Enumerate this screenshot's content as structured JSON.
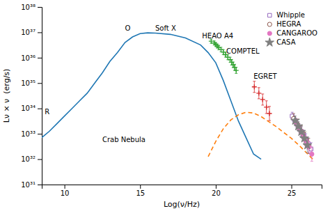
{
  "chart_data": {
    "type": "line",
    "xlabel": "Log(ν/Hz)",
    "ylabel": "Lν × ν  (erg/s)",
    "xlim": [
      8.5,
      27
    ],
    "ylim": [
      31,
      38
    ],
    "xticks": [
      10,
      15,
      20,
      25
    ],
    "yticks": [
      {
        "value": 31,
        "label": "10³¹"
      },
      {
        "value": 32,
        "label": "10³²"
      },
      {
        "value": 33,
        "label": "10³³"
      },
      {
        "value": 34,
        "label": "10³⁴"
      },
      {
        "value": 35,
        "label": "10³⁵"
      },
      {
        "value": 36,
        "label": "10³⁶"
      },
      {
        "value": 37,
        "label": "10³⁷"
      },
      {
        "value": 38,
        "label": "10³⁸"
      }
    ],
    "legend": "upper right",
    "series": [
      {
        "type": "line",
        "line_style": "solid",
        "x": [
          8.5,
          9.0,
          9.5,
          10.0,
          10.5,
          11.0,
          11.5,
          12.0,
          12.5,
          13.0,
          13.5,
          14.0,
          14.5,
          15.0,
          15.5,
          16.0,
          17.0,
          18.0,
          19.0,
          19.5,
          20.0,
          20.5,
          21.0,
          21.5,
          22.0,
          22.5,
          23.0
        ],
        "values": [
          32.85,
          33.1,
          33.4,
          33.7,
          34.0,
          34.3,
          34.6,
          35.0,
          35.4,
          35.85,
          36.2,
          36.6,
          36.82,
          36.95,
          36.98,
          36.97,
          36.92,
          36.78,
          36.5,
          36.2,
          35.8,
          35.1,
          34.3,
          33.5,
          32.85,
          32.2,
          32.0
        ]
      },
      {
        "type": "line",
        "line_style": "dashed",
        "x": [
          19.5,
          20.0,
          20.5,
          21.0,
          21.5,
          22.0,
          22.5,
          23.0,
          23.5,
          24.0,
          24.5,
          25.0,
          25.5,
          26.0,
          26.5
        ],
        "values": [
          32.1,
          32.7,
          33.2,
          33.55,
          33.75,
          33.85,
          33.82,
          33.68,
          33.48,
          33.28,
          33.05,
          32.82,
          32.55,
          32.25,
          31.95
        ]
      },
      {
        "type": "scatter",
        "marker": "plus",
        "x": [
          19.7,
          19.9,
          20.0,
          20.1,
          20.2,
          20.35,
          20.5,
          20.65,
          20.8,
          20.95,
          21.05,
          21.15,
          21.25,
          21.35
        ],
        "values": [
          36.65,
          36.58,
          36.52,
          36.46,
          36.4,
          36.32,
          36.22,
          36.12,
          36.02,
          35.92,
          35.82,
          35.72,
          35.62,
          35.5
        ],
        "errors": [
          0.08,
          0.08,
          0.08,
          0.08,
          0.09,
          0.09,
          0.1,
          0.1,
          0.1,
          0.1,
          0.11,
          0.11,
          0.12,
          0.12
        ]
      },
      {
        "type": "scatter",
        "marker": "plus",
        "x": [
          22.55,
          22.85,
          23.1,
          23.35,
          23.55
        ],
        "values": [
          34.85,
          34.6,
          34.35,
          34.05,
          33.8
        ],
        "errors": [
          0.22,
          0.22,
          0.22,
          0.25,
          0.28
        ]
      },
      {
        "type": "scatter",
        "marker": "open-square",
        "name": "Whipple",
        "x": [
          25.05,
          25.2,
          25.35,
          25.5,
          25.65,
          25.8,
          25.95,
          26.1,
          26.3
        ],
        "values": [
          33.7,
          33.55,
          33.4,
          33.25,
          33.1,
          32.95,
          32.8,
          32.62,
          32.4
        ],
        "errors": [
          0.15,
          0.15,
          0.15,
          0.15,
          0.18,
          0.18,
          0.2,
          0.22,
          0.25
        ]
      },
      {
        "type": "scatter",
        "marker": "open-circle",
        "name": "HEGRA",
        "x": [
          25.15,
          25.4,
          25.65,
          25.9,
          26.15
        ],
        "values": [
          33.6,
          33.38,
          33.1,
          32.82,
          32.52
        ],
        "errors": [
          0.2,
          0.2,
          0.22,
          0.25,
          0.3
        ]
      },
      {
        "type": "scatter",
        "marker": "circle",
        "name": "CANGAROO",
        "x": [
          25.3,
          25.55,
          25.75,
          25.95,
          26.15,
          26.35
        ],
        "values": [
          33.45,
          33.2,
          32.98,
          32.72,
          32.48,
          32.2
        ],
        "errors": [
          0.15,
          0.15,
          0.18,
          0.2,
          0.22,
          0.28
        ]
      },
      {
        "type": "scatter",
        "marker": "star",
        "name": "CASA",
        "x": [
          25.25,
          25.45,
          25.65,
          25.85,
          26.05
        ],
        "values": [
          33.52,
          33.3,
          33.08,
          32.82,
          32.55
        ],
        "errors": [
          0.18,
          0.18,
          0.2,
          0.22,
          0.28
        ]
      }
    ],
    "annotations": [
      {
        "text": "R",
        "x": 8.7,
        "y": 33.85
      },
      {
        "text": "O",
        "x": 14.0,
        "y": 37.15
      },
      {
        "text": "Soft X",
        "x": 16.0,
        "y": 37.15
      },
      {
        "text": "HEAO A4",
        "x": 19.1,
        "y": 36.85
      },
      {
        "text": "COMPTEL",
        "x": 20.7,
        "y": 36.25
      },
      {
        "text": "EGRET",
        "x": 22.5,
        "y": 35.25
      },
      {
        "text": "Crab Nebula",
        "x": 12.5,
        "y": 32.75
      }
    ]
  }
}
